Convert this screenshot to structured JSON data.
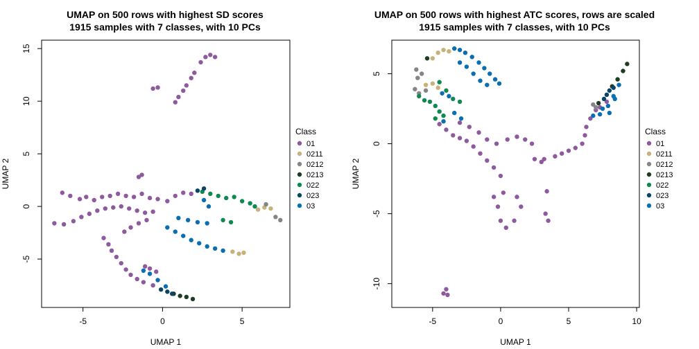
{
  "chart_data": [
    {
      "type": "scatter",
      "title": "UMAP on 500 rows with highest SD scores",
      "subtitle": "1915 samples with 7 classes, with 10 PCs",
      "xlabel": "UMAP 1",
      "ylabel": "UMAP 2",
      "xlim": [
        -7.6,
        8.0
      ],
      "ylim": [
        -9.6,
        15.8
      ],
      "xticks": [
        -5,
        0,
        5
      ],
      "yticks": [
        -5,
        0,
        5,
        10,
        15
      ],
      "legend": {
        "title": "Class",
        "placement": "right"
      },
      "series": [
        {
          "name": "01",
          "color": "#8E5A9E",
          "values": [
            [
              -6.3,
              1.3
            ],
            [
              -5.8,
              1.0
            ],
            [
              -5.2,
              0.7
            ],
            [
              -4.8,
              0.9
            ],
            [
              -4.3,
              0.6
            ],
            [
              -3.8,
              0.9
            ],
            [
              -3.3,
              1.0
            ],
            [
              -2.8,
              1.2
            ],
            [
              -2.3,
              1.0
            ],
            [
              -1.8,
              0.9
            ],
            [
              -1.3,
              1.2
            ],
            [
              -0.8,
              0.8
            ],
            [
              -0.3,
              0.7
            ],
            [
              0.3,
              0.5
            ],
            [
              0.8,
              1.0
            ],
            [
              1.3,
              1.3
            ],
            [
              1.8,
              1.2
            ],
            [
              -1.5,
              2.8
            ],
            [
              -1.3,
              3.0
            ],
            [
              -6.8,
              -1.6
            ],
            [
              -6.2,
              -1.7
            ],
            [
              -5.6,
              -1.4
            ],
            [
              -5.1,
              -1.0
            ],
            [
              -4.6,
              -0.7
            ],
            [
              -4.1,
              -0.4
            ],
            [
              -3.6,
              -0.2
            ],
            [
              -3.1,
              -0.1
            ],
            [
              -2.6,
              0.0
            ],
            [
              -2.1,
              -0.2
            ],
            [
              -1.6,
              -0.4
            ],
            [
              -1.1,
              -0.6
            ],
            [
              -0.6,
              -0.5
            ],
            [
              -3.7,
              -3.0
            ],
            [
              -3.4,
              -3.6
            ],
            [
              -3.2,
              -4.2
            ],
            [
              -2.9,
              -4.8
            ],
            [
              -2.6,
              -5.4
            ],
            [
              -2.3,
              -6.0
            ],
            [
              -2.0,
              -6.5
            ],
            [
              -1.6,
              -6.9
            ],
            [
              -1.2,
              -7.2
            ],
            [
              -0.6,
              -7.5
            ],
            [
              -1.1,
              -5.7
            ],
            [
              -0.8,
              -5.9
            ],
            [
              -0.4,
              -6.2
            ],
            [
              -2.4,
              -2.4
            ],
            [
              -2.0,
              -2.0
            ],
            [
              -1.5,
              -1.6
            ],
            [
              -1.0,
              -1.3
            ],
            [
              0.8,
              9.9
            ],
            [
              1.0,
              10.4
            ],
            [
              1.3,
              11.0
            ],
            [
              1.5,
              11.5
            ],
            [
              1.8,
              12.2
            ],
            [
              2.0,
              12.7
            ],
            [
              2.4,
              13.7
            ],
            [
              2.7,
              14.2
            ],
            [
              3.0,
              14.4
            ],
            [
              3.3,
              14.2
            ],
            [
              -0.6,
              11.2
            ],
            [
              -0.3,
              11.3
            ]
          ]
        },
        {
          "name": "0211",
          "color": "#C8B27A",
          "values": [
            [
              6.0,
              -0.3
            ],
            [
              6.4,
              -0.1
            ],
            [
              6.8,
              -0.2
            ],
            [
              4.4,
              -4.3
            ],
            [
              4.8,
              -4.5
            ],
            [
              5.1,
              -4.4
            ]
          ]
        },
        {
          "name": "0212",
          "color": "#858585",
          "values": [
            [
              7.1,
              -1.0
            ],
            [
              7.4,
              -1.3
            ],
            [
              6.5,
              0.2
            ]
          ]
        },
        {
          "name": "0213",
          "color": "#1E3C24",
          "values": [
            [
              1.1,
              -8.5
            ],
            [
              1.5,
              -8.6
            ],
            [
              1.9,
              -8.8
            ],
            [
              0.7,
              -8.3
            ]
          ]
        },
        {
          "name": "022",
          "color": "#0E8A50",
          "values": [
            [
              2.5,
              1.4
            ],
            [
              3.0,
              1.2
            ],
            [
              3.5,
              1.0
            ],
            [
              4.0,
              0.8
            ],
            [
              4.5,
              0.9
            ],
            [
              5.0,
              0.5
            ],
            [
              5.5,
              0.3
            ],
            [
              5.8,
              0.0
            ],
            [
              3.8,
              -1.3
            ],
            [
              4.3,
              -1.5
            ]
          ]
        },
        {
          "name": "023",
          "color": "#0B4564",
          "values": [
            [
              -0.1,
              -7.9
            ],
            [
              0.3,
              -8.1
            ],
            [
              0.6,
              -8.3
            ],
            [
              2.2,
              1.5
            ],
            [
              2.6,
              1.7
            ]
          ]
        },
        {
          "name": "03",
          "color": "#0A6EB0",
          "values": [
            [
              0.3,
              -2.0
            ],
            [
              0.8,
              -2.4
            ],
            [
              1.3,
              -2.8
            ],
            [
              1.8,
              -3.2
            ],
            [
              2.3,
              -3.5
            ],
            [
              2.8,
              -3.8
            ],
            [
              3.3,
              -4.0
            ],
            [
              3.8,
              -4.2
            ],
            [
              1.0,
              -1.1
            ],
            [
              1.6,
              -1.3
            ],
            [
              2.2,
              -1.5
            ],
            [
              2.8,
              -1.6
            ],
            [
              -1.2,
              -6.1
            ],
            [
              -0.8,
              -6.4
            ],
            [
              -0.3,
              -7.0
            ],
            [
              0.2,
              -7.6
            ],
            [
              2.6,
              0.6
            ],
            [
              2.9,
              0.0
            ]
          ]
        }
      ]
    },
    {
      "type": "scatter",
      "title": "UMAP on 500 rows with highest ATC scores, rows are scaled",
      "subtitle": "1915 samples with 7 classes, with 10 PCs",
      "xlabel": "UMAP 1",
      "ylabel": "UMAP 2",
      "xlim": [
        -8.0,
        10.2
      ],
      "ylim": [
        -11.7,
        7.4
      ],
      "xticks": [
        -5,
        0,
        5,
        10
      ],
      "yticks": [
        -10,
        -5,
        0,
        5
      ],
      "legend": {
        "title": "Class",
        "placement": "right"
      },
      "series": [
        {
          "name": "01",
          "color": "#8E5A9E",
          "values": [
            [
              -4.5,
              1.4
            ],
            [
              -4.0,
              1.0
            ],
            [
              -3.5,
              0.6
            ],
            [
              -3.0,
              0.4
            ],
            [
              -2.5,
              0.2
            ],
            [
              -2.0,
              -0.2
            ],
            [
              -1.5,
              -0.7
            ],
            [
              -1.0,
              -1.2
            ],
            [
              -0.5,
              -1.7
            ],
            [
              0.0,
              -2.3
            ],
            [
              -3.0,
              1.5
            ],
            [
              -2.3,
              1.2
            ],
            [
              -1.6,
              0.8
            ],
            [
              -1.0,
              0.3
            ],
            [
              -0.3,
              0.0
            ],
            [
              0.5,
              0.3
            ],
            [
              1.2,
              0.5
            ],
            [
              1.8,
              0.3
            ],
            [
              2.3,
              0.0
            ],
            [
              0.2,
              -3.5
            ],
            [
              -0.2,
              -4.5
            ],
            [
              0.0,
              -5.5
            ],
            [
              0.4,
              -6.0
            ],
            [
              1.0,
              -5.5
            ],
            [
              1.5,
              -4.5
            ],
            [
              1.2,
              -3.8
            ],
            [
              -0.5,
              -3.8
            ],
            [
              3.0,
              -1.3
            ],
            [
              3.4,
              -3.4
            ],
            [
              3.3,
              -5.0
            ],
            [
              3.5,
              -5.5
            ],
            [
              2.5,
              -1.1
            ],
            [
              3.2,
              -1.1
            ],
            [
              4.0,
              -0.9
            ],
            [
              4.5,
              -0.7
            ],
            [
              5.0,
              -0.5
            ],
            [
              5.5,
              -0.3
            ],
            [
              6.0,
              0.0
            ],
            [
              6.2,
              0.6
            ],
            [
              6.3,
              1.2
            ],
            [
              6.6,
              1.8
            ],
            [
              7.0,
              2.4
            ],
            [
              7.3,
              2.6
            ],
            [
              7.8,
              3.0
            ],
            [
              -4.0,
              -10.4
            ],
            [
              -3.9,
              -10.8
            ],
            [
              -4.2,
              -10.7
            ]
          ]
        },
        {
          "name": "0211",
          "color": "#C8B27A",
          "values": [
            [
              -5.5,
              4.2
            ],
            [
              -5.0,
              4.3
            ],
            [
              -4.6,
              4.0
            ],
            [
              -5.0,
              6.1
            ],
            [
              -4.6,
              6.5
            ],
            [
              -4.2,
              6.7
            ],
            [
              -3.8,
              6.6
            ]
          ]
        },
        {
          "name": "0212",
          "color": "#858585",
          "values": [
            [
              -6.2,
              5.3
            ],
            [
              -6.1,
              4.7
            ],
            [
              -5.8,
              5.0
            ],
            [
              -6.3,
              3.9
            ],
            [
              -6.0,
              3.6
            ],
            [
              -5.5,
              3.8
            ],
            [
              7.0,
              2.6
            ],
            [
              6.8,
              2.8
            ]
          ]
        },
        {
          "name": "0213",
          "color": "#1E3C24",
          "values": [
            [
              -5.4,
              6.1
            ],
            [
              8.2,
              4.1
            ],
            [
              8.6,
              4.6
            ],
            [
              9.0,
              5.2
            ],
            [
              9.3,
              5.7
            ],
            [
              7.2,
              2.9
            ]
          ]
        },
        {
          "name": "022",
          "color": "#0E8A50",
          "values": [
            [
              -6.0,
              3.4
            ],
            [
              -5.6,
              3.1
            ],
            [
              -5.2,
              3.0
            ],
            [
              -4.8,
              2.7
            ],
            [
              -4.5,
              2.3
            ],
            [
              -4.2,
              2.0
            ],
            [
              -4.5,
              4.4
            ],
            [
              -4.0,
              3.8
            ],
            [
              -3.5,
              3.2
            ],
            [
              -3.0,
              3.0
            ],
            [
              -4.8,
              1.8
            ]
          ]
        },
        {
          "name": "023",
          "color": "#0B4564",
          "values": [
            [
              7.6,
              3.2
            ],
            [
              7.8,
              3.5
            ],
            [
              8.0,
              3.8
            ],
            [
              8.3,
              4.0
            ]
          ]
        },
        {
          "name": "03",
          "color": "#0A6EB0",
          "values": [
            [
              -3.4,
              6.8
            ],
            [
              -3.0,
              6.7
            ],
            [
              -2.6,
              6.5
            ],
            [
              -2.1,
              6.2
            ],
            [
              -1.6,
              5.8
            ],
            [
              -1.2,
              5.4
            ],
            [
              -0.8,
              5.0
            ],
            [
              -0.4,
              4.6
            ],
            [
              -0.1,
              4.3
            ],
            [
              -2.5,
              5.5
            ],
            [
              -2.0,
              5.0
            ],
            [
              -1.5,
              4.5
            ],
            [
              -1.0,
              4.2
            ],
            [
              -3.0,
              5.8
            ],
            [
              -4.3,
              3.6
            ],
            [
              -3.8,
              3.4
            ],
            [
              -4.2,
              1.6
            ],
            [
              -3.4,
              2.2
            ],
            [
              -2.9,
              1.8
            ],
            [
              7.5,
              2.5
            ],
            [
              7.9,
              2.7
            ],
            [
              8.4,
              3.2
            ],
            [
              8.0,
              2.2
            ],
            [
              8.3,
              3.4
            ],
            [
              8.7,
              4.2
            ],
            [
              7.3,
              2.1
            ],
            [
              6.8,
              2.0
            ]
          ]
        }
      ]
    }
  ]
}
